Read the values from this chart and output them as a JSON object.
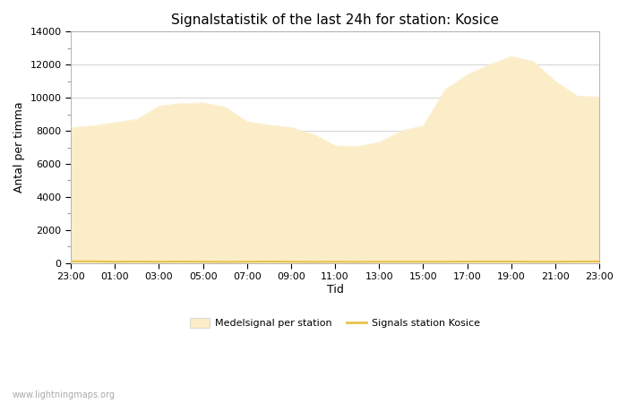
{
  "title": "Signalstatistik of the last 24h for station: Kosice",
  "xlabel": "Tid",
  "ylabel": "Antal per timma",
  "watermark": "www.lightningmaps.org",
  "x_ticks": [
    "23:00",
    "01:00",
    "03:00",
    "05:00",
    "07:00",
    "09:00",
    "11:00",
    "13:00",
    "15:00",
    "17:00",
    "19:00",
    "21:00",
    "23:00"
  ],
  "ylim": [
    0,
    14000
  ],
  "yticks": [
    0,
    2000,
    4000,
    6000,
    8000,
    10000,
    12000,
    14000
  ],
  "background_color": "#ffffff",
  "plot_bg_color": "#ffffff",
  "fill_color": "#faedc8",
  "fill_edge_color": "#faedc8",
  "line_color": "#e8c34a",
  "legend_label_fill": "Medelsignal per station",
  "legend_label_line": "Signals station Kosice",
  "x_values": [
    0,
    1,
    2,
    3,
    4,
    5,
    6,
    7,
    8,
    9,
    10,
    11,
    12,
    13,
    14,
    15,
    16,
    17,
    18,
    19,
    20,
    21,
    22,
    23,
    24
  ],
  "y_fill": [
    8200,
    8300,
    8500,
    8700,
    9500,
    9650,
    9700,
    9450,
    8550,
    8350,
    8200,
    7800,
    7100,
    7050,
    7300,
    8000,
    8300,
    10500,
    11400,
    12000,
    12500,
    12200,
    11000,
    10100,
    10050
  ],
  "y_line": [
    100,
    100,
    80,
    90,
    80,
    90,
    80,
    70,
    80,
    90,
    80,
    70,
    80,
    70,
    80,
    80,
    80,
    80,
    90,
    90,
    90,
    80,
    80,
    90,
    90
  ]
}
